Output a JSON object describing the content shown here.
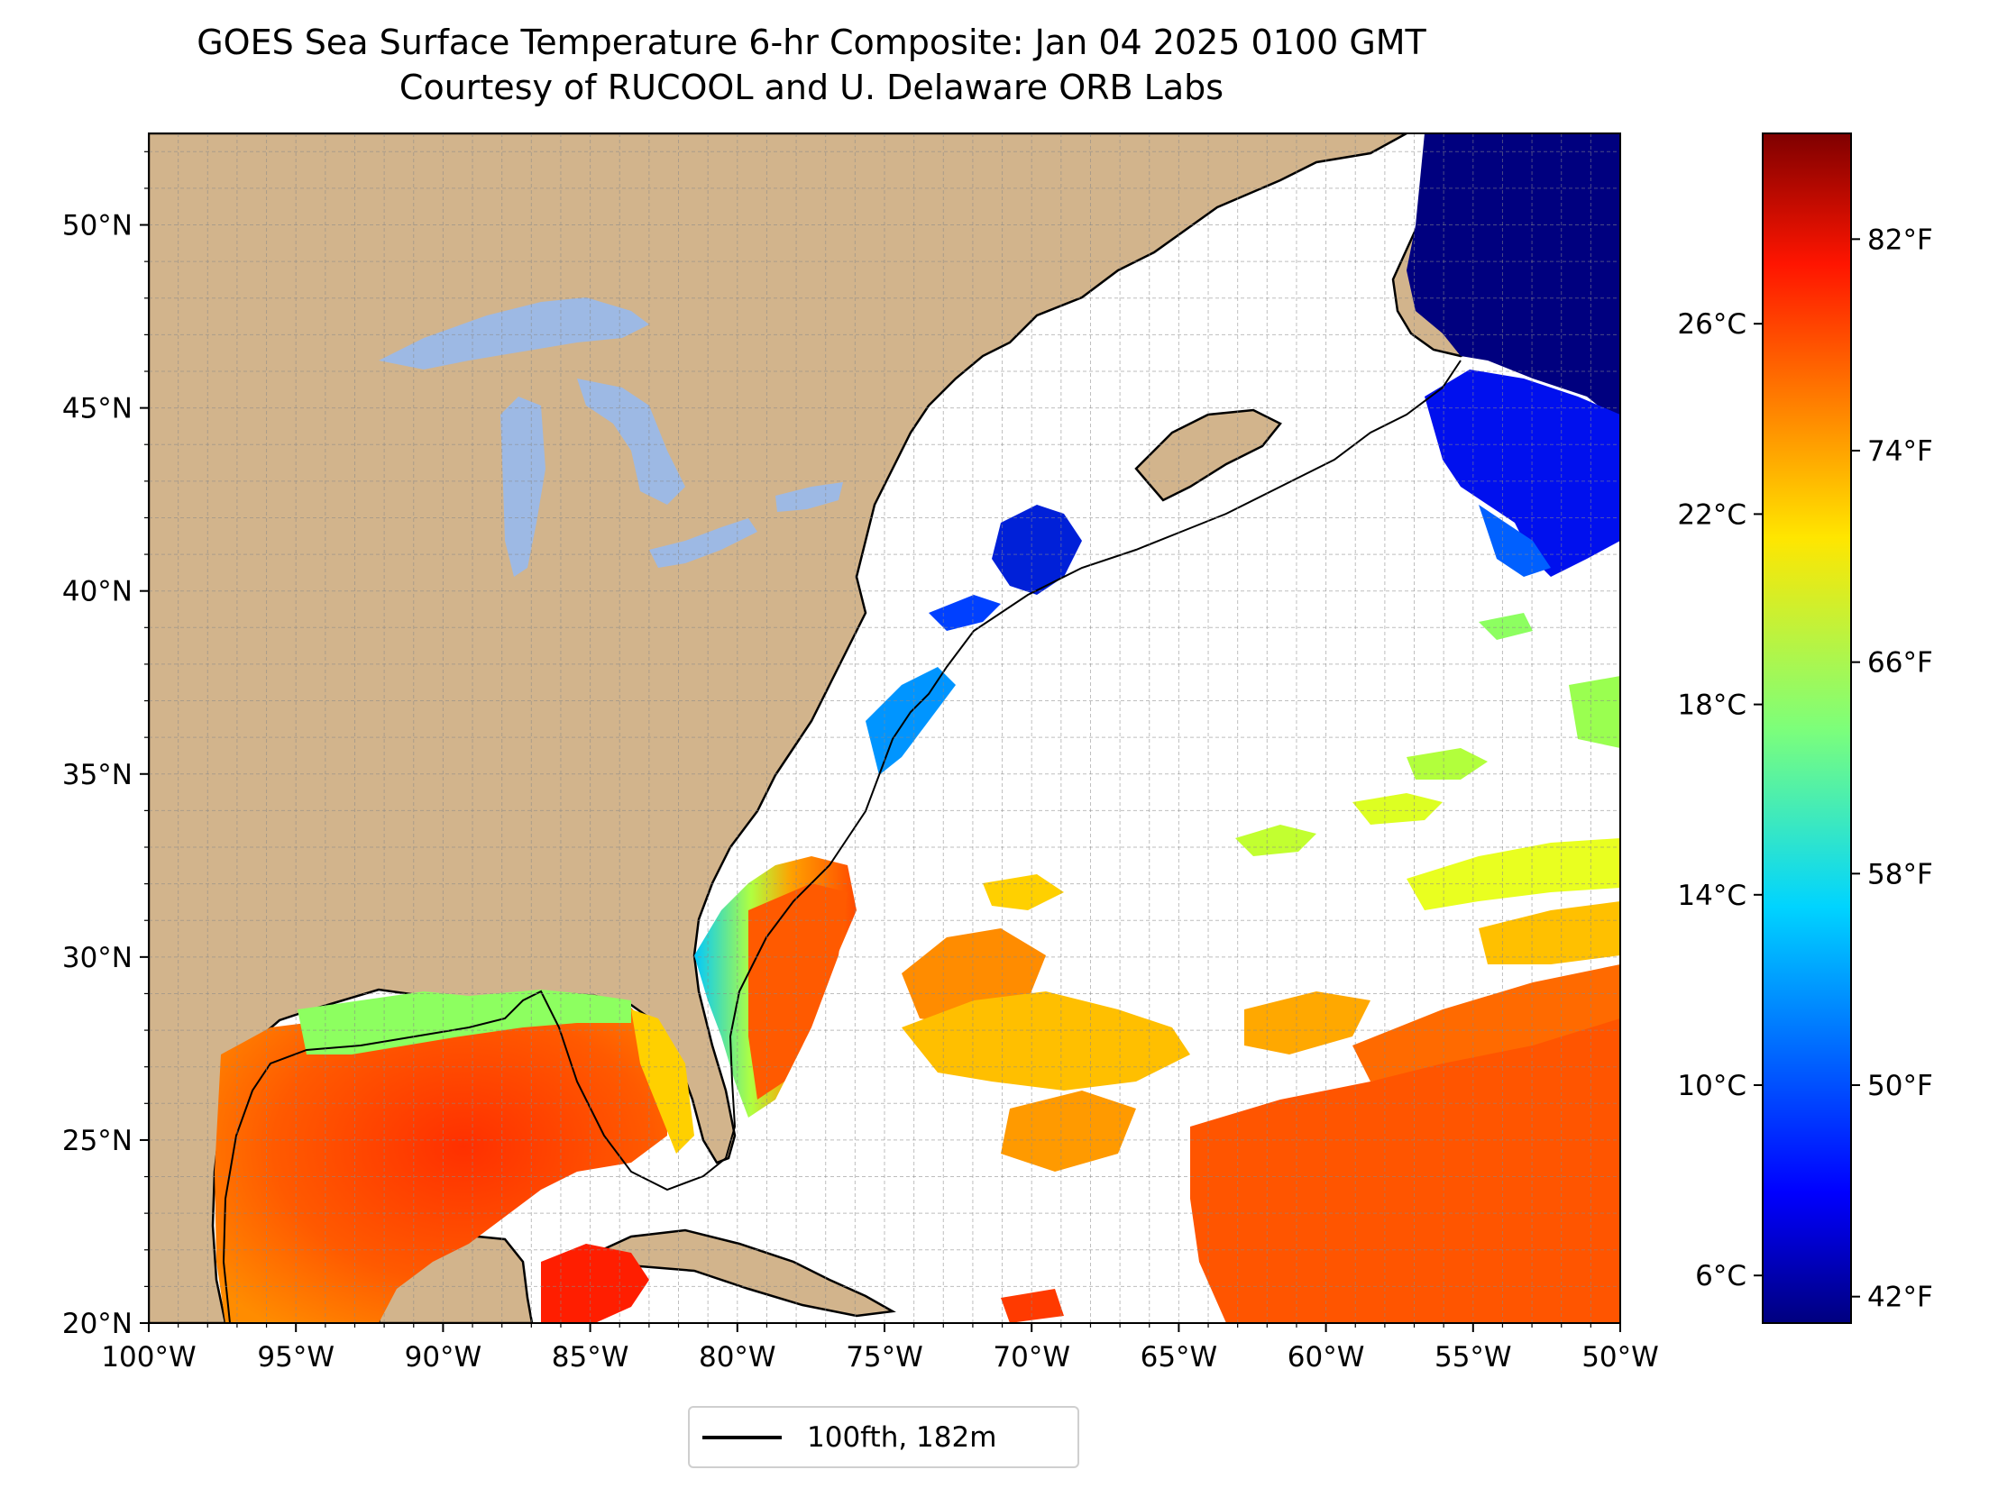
{
  "title": {
    "line1": "GOES Sea Surface Temperature 6-hr Composite: Jan 04 2025 0100 GMT",
    "line2": "Courtesy of RUCOOL and U. Delaware ORB Labs"
  },
  "map": {
    "lon_range": [
      -100,
      -50
    ],
    "lat_range": [
      20,
      52.5
    ],
    "lon_ticks": [
      -100,
      -95,
      -90,
      -85,
      -80,
      -75,
      -70,
      -65,
      -60,
      -55,
      -50
    ],
    "lon_labels": [
      "100°W",
      "95°W",
      "90°W",
      "85°W",
      "80°W",
      "75°W",
      "70°W",
      "65°W",
      "60°W",
      "55°W",
      "50°W"
    ],
    "lat_ticks": [
      20,
      25,
      30,
      35,
      40,
      45,
      50
    ],
    "lat_labels": [
      "20°N",
      "25°N",
      "30°N",
      "35°N",
      "40°N",
      "45°N",
      "50°N"
    ],
    "gridlines": true,
    "land_color": "#d2b48c",
    "lake_color": "#9db9e4"
  },
  "colorbar": {
    "colormap": "jet",
    "range_c": [
      5,
      30
    ],
    "celsius_ticks": [
      6,
      10,
      14,
      18,
      22,
      26
    ],
    "celsius_labels": [
      "6°C",
      "10°C",
      "14°C",
      "18°C",
      "22°C",
      "26°C"
    ],
    "fahrenheit_ticks": [
      42,
      50,
      58,
      66,
      74,
      82
    ],
    "fahrenheit_labels": [
      "42°F",
      "50°F",
      "58°F",
      "66°F",
      "74°F",
      "82°F"
    ]
  },
  "legend": {
    "entry_label": "100fth, 182m",
    "line_color": "#000000"
  }
}
